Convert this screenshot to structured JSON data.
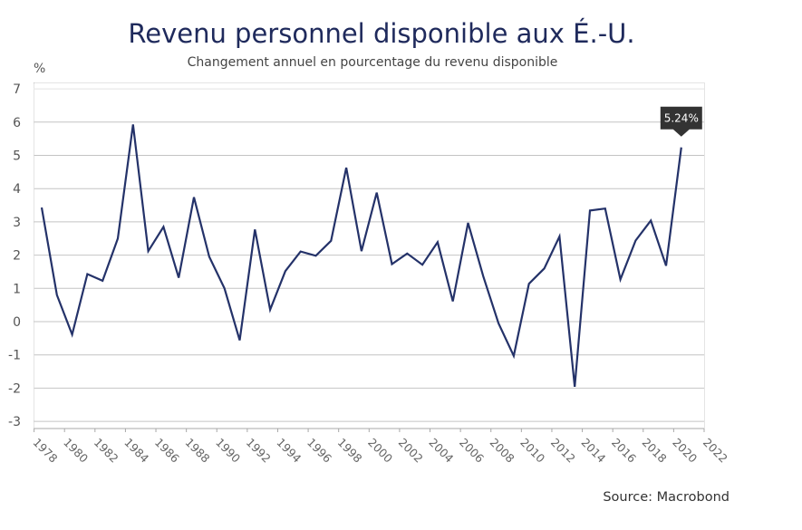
{
  "chart_data": {
    "type": "line",
    "title": "Revenu personnel disponible aux É.-U.",
    "subtitle": "Changement annuel en pourcentage du revenu disponible",
    "ylabel": "%",
    "xlabel": "",
    "source": "Source: Macrobond",
    "ylim": [
      -3,
      7
    ],
    "yticks": [
      7,
      6,
      5,
      4,
      3,
      2,
      1,
      0,
      -1,
      -2,
      -3
    ],
    "ytick_labels": [
      "7",
      "6",
      "5",
      "4",
      "3",
      "2",
      "1",
      "0",
      "-1",
      "-2",
      "-3"
    ],
    "xlim": [
      1978,
      2022
    ],
    "xticks": [
      1978,
      1980,
      1982,
      1984,
      1986,
      1988,
      1990,
      1992,
      1994,
      1996,
      1998,
      2000,
      2002,
      2004,
      2006,
      2008,
      2010,
      2012,
      2014,
      2016,
      2018,
      2020,
      2022
    ],
    "xtick_labels": [
      "1978",
      "1980",
      "1982",
      "1984",
      "1986",
      "1988",
      "1990",
      "1992",
      "1994",
      "1996",
      "1998",
      "2000",
      "2002",
      "2004",
      "2006",
      "2008",
      "2010",
      "2012",
      "2014",
      "2016",
      "2018",
      "2020",
      "2022"
    ],
    "grid": true,
    "legend": "none",
    "line_color": "#243269",
    "series": [
      {
        "name": "Revenu personnel disponible",
        "x": [
          1978,
          1979,
          1980,
          1981,
          1982,
          1983,
          1984,
          1985,
          1986,
          1987,
          1988,
          1989,
          1990,
          1991,
          1992,
          1993,
          1994,
          1995,
          1996,
          1997,
          1998,
          1999,
          2000,
          2001,
          2002,
          2003,
          2004,
          2005,
          2006,
          2007,
          2008,
          2009,
          2010,
          2011,
          2012,
          2013,
          2014,
          2015,
          2016,
          2017,
          2018,
          2019,
          2020
        ],
        "values": [
          3.43,
          0.8,
          -0.39,
          1.43,
          1.23,
          2.5,
          5.93,
          2.12,
          2.85,
          1.32,
          3.74,
          1.95,
          1.0,
          -0.56,
          2.77,
          0.36,
          1.52,
          2.11,
          1.98,
          2.43,
          4.63,
          2.12,
          3.88,
          1.73,
          2.05,
          1.71,
          2.39,
          0.61,
          2.97,
          1.36,
          -0.05,
          -1.03,
          1.14,
          1.6,
          2.56,
          -1.96,
          3.34,
          3.4,
          1.27,
          2.44,
          3.04,
          1.68,
          5.24
        ]
      }
    ],
    "annotations": [
      {
        "x": 2020,
        "y": 5.24,
        "text": "5.24%",
        "color": "#333333"
      }
    ]
  }
}
